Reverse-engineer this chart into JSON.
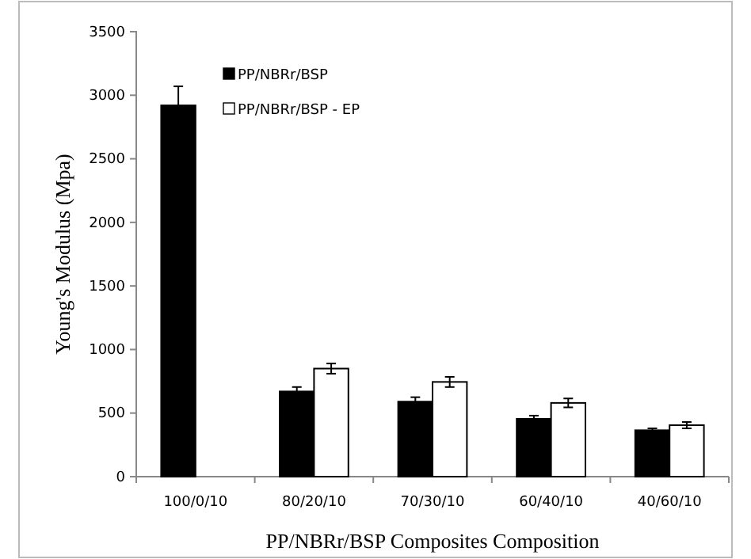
{
  "chart_data": {
    "type": "bar",
    "xlabel": "PP/NBRr/BSP Composites Composition",
    "ylabel": "Young's Modulus (Mpa)",
    "categories": [
      "100/0/10",
      "80/20/10",
      "70/30/10",
      "60/40/10",
      "40/60/10"
    ],
    "series": [
      {
        "name": "PP/NBRr/BSP",
        "color": "#000000",
        "values": [
          2920,
          670,
          590,
          455,
          365
        ],
        "errors": [
          150,
          35,
          35,
          25,
          15
        ]
      },
      {
        "name": "PP/NBRr/BSP - EP",
        "color": "#ffffff",
        "values": [
          null,
          850,
          745,
          580,
          405
        ],
        "errors": [
          null,
          40,
          40,
          35,
          25
        ]
      }
    ],
    "ylim": [
      0,
      3500
    ],
    "yticks": [
      0,
      500,
      1000,
      1500,
      2000,
      2500,
      3000,
      3500
    ],
    "grid": false,
    "legend": "top left"
  }
}
